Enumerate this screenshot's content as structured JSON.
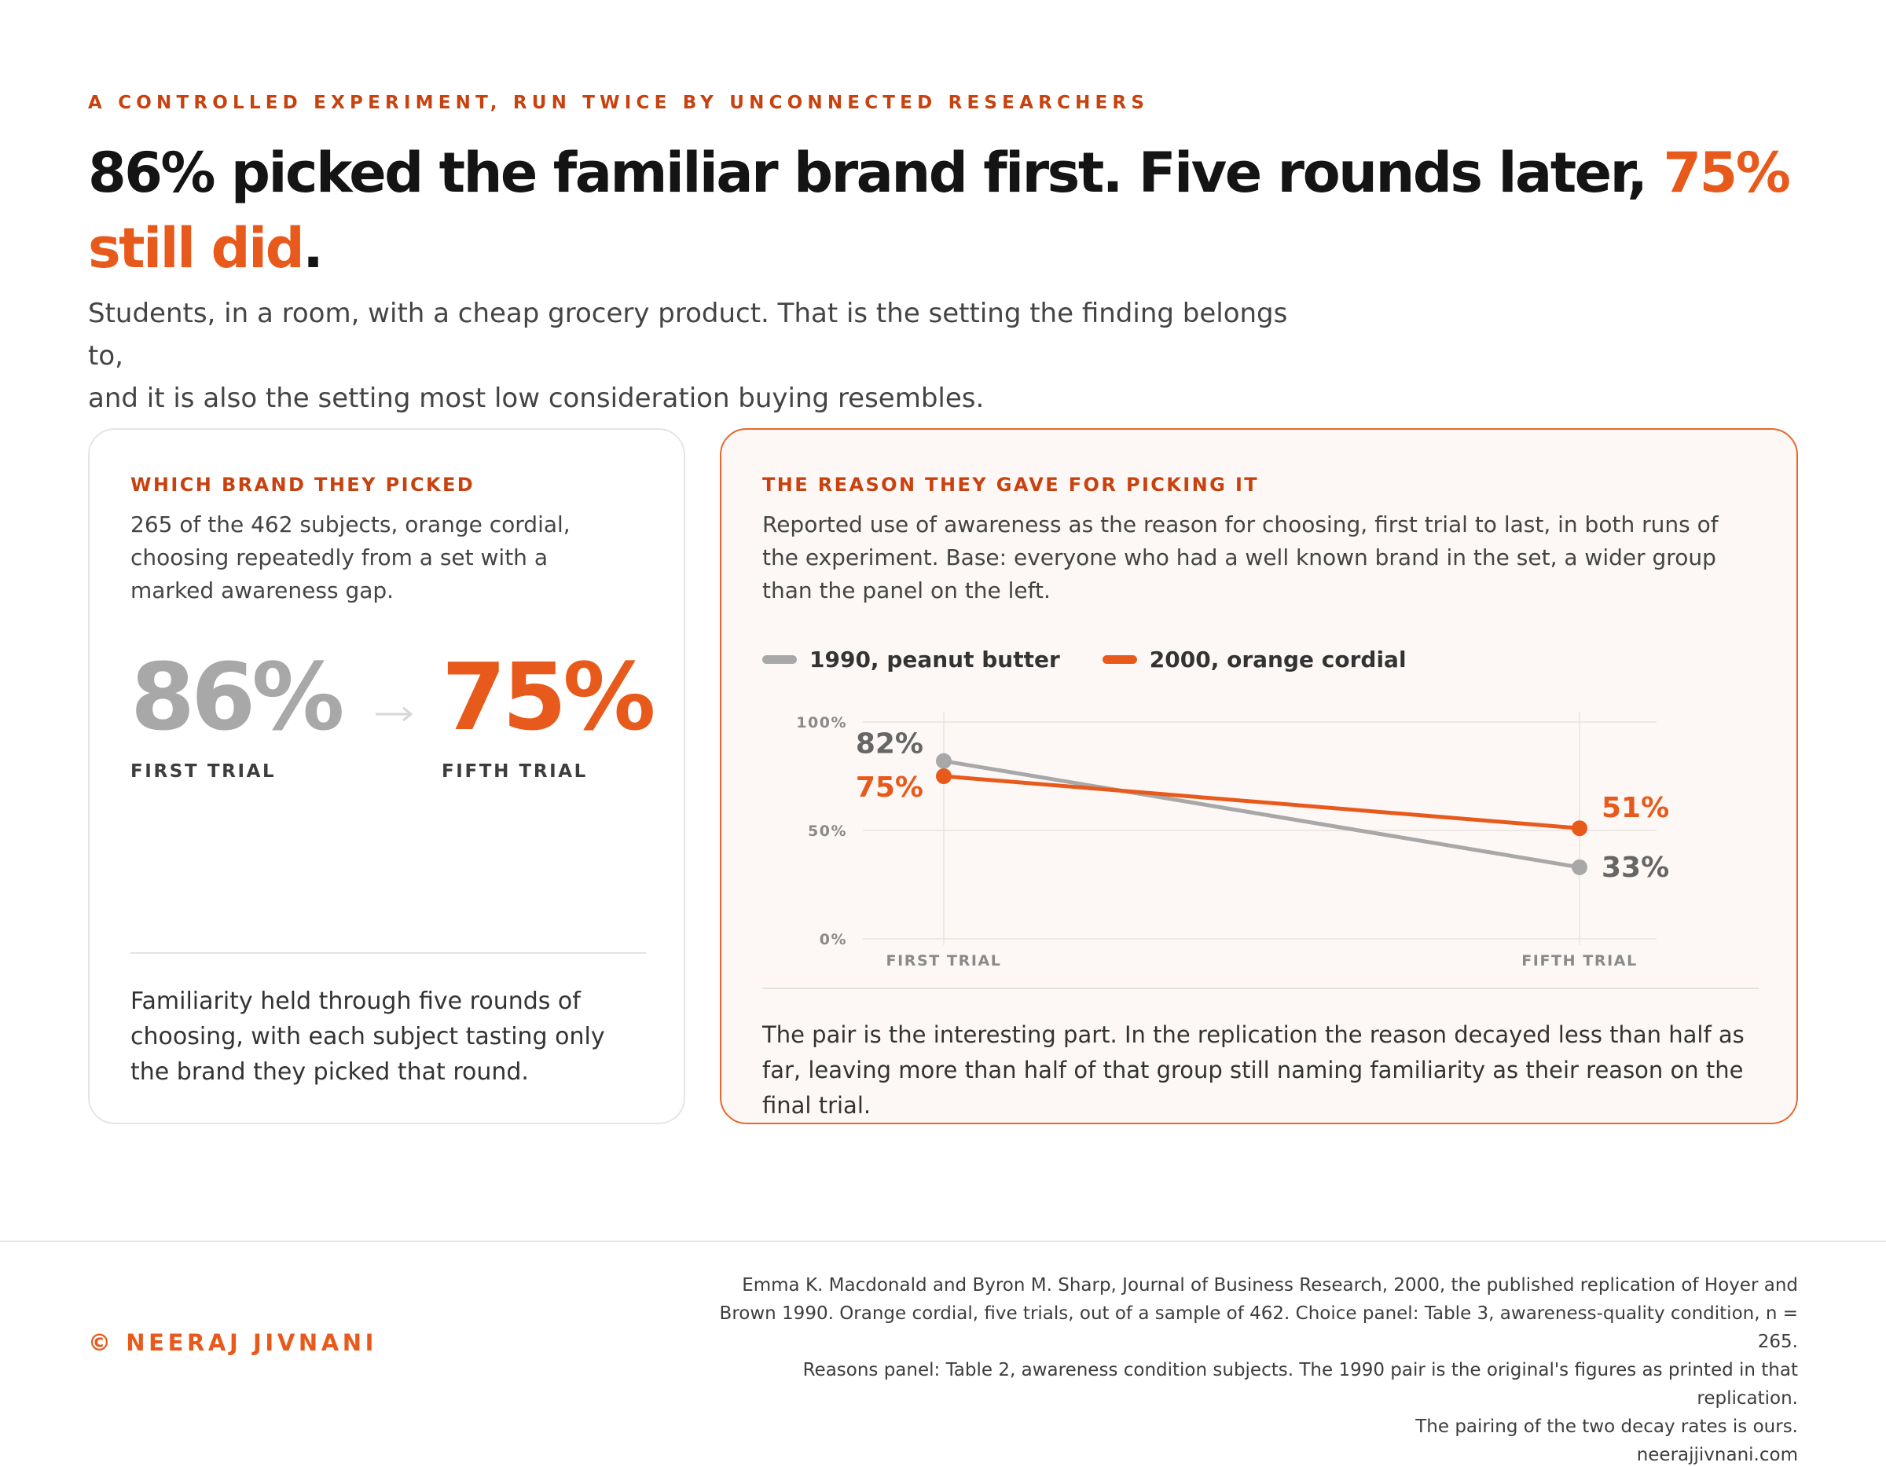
{
  "eyebrow": "A CONTROLLED EXPERIMENT, RUN TWICE BY UNCONNECTED RESEARCHERS",
  "headline": {
    "part1": "86% picked the familiar brand first. Five rounds later, ",
    "accent": "75% still did",
    "end": "."
  },
  "subtitle": {
    "line1": "Students, in a room, with a cheap grocery product. That is the setting the finding belongs to,",
    "line2": "and it is also the setting most low consideration buying resembles."
  },
  "left_panel": {
    "label": "WHICH BRAND THEY PICKED",
    "description": "265 of the 462 subjects, orange cordial, choosing repeatedly from a set with a marked awareness gap.",
    "first_value": "86%",
    "first_caption": "FIRST TRIAL",
    "fifth_value": "75%",
    "fifth_caption": "FIFTH TRIAL",
    "note": "Familiarity held through five rounds of choosing, with each subject tasting only the brand they picked that round."
  },
  "right_panel": {
    "label": "THE REASON THEY GAVE FOR PICKING IT",
    "description": "Reported use of awareness as the reason for choosing, first trial to last, in both runs of the experiment. Base: everyone who had a well known brand in the set, a wider group than the panel on the left.",
    "note": "The pair is the interesting part. In the replication the reason decayed less than half as far, leaving more than half of that group still naming familiarity as their reason on the final trial."
  },
  "colors": {
    "accent": "#e85a1b",
    "accent_dark": "#c8420f",
    "gray_series": "#a8a8a8"
  },
  "chart_data": {
    "type": "line",
    "categories": [
      "FIRST TRIAL",
      "FIFTH TRIAL"
    ],
    "series": [
      {
        "name": "1990, peanut butter",
        "values": [
          82,
          33
        ],
        "labels": [
          "82%",
          "33%"
        ],
        "color": "#a8a8a8",
        "label_color": "#666666"
      },
      {
        "name": "2000, orange cordial",
        "values": [
          75,
          51
        ],
        "labels": [
          "75%",
          "51%"
        ],
        "color": "#e85a1b",
        "label_color": "#e85a1b"
      }
    ],
    "ylim": [
      0,
      100
    ],
    "yticks": [
      0,
      50,
      100
    ],
    "ytick_labels": [
      "0%",
      "50%",
      "100%"
    ],
    "grid": true,
    "legend": "top-left"
  },
  "footer": {
    "brand": "© NEERAJ JIVNANI",
    "source_lines": [
      "Emma K. Macdonald and Byron M. Sharp, Journal of Business Research, 2000, the published replication of Hoyer and",
      "Brown 1990. Orange cordial, five trials, out of a sample of 462. Choice panel: Table 3, awareness-quality condition, n = 265.",
      "Reasons panel: Table 2, awareness condition subjects. The 1990 pair is the original's figures as printed in that replication.",
      "The pairing of the two decay rates is ours.",
      "neerajjivnani.com"
    ]
  }
}
